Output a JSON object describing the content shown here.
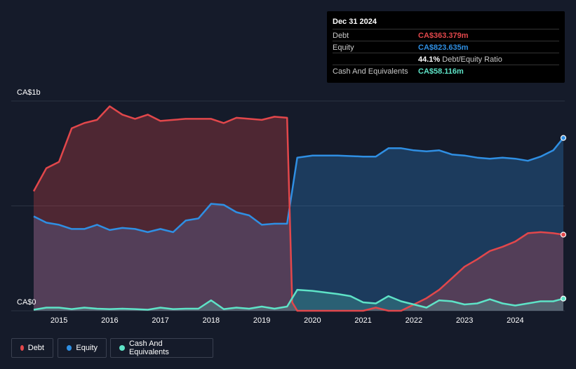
{
  "tooltip": {
    "date": "Dec 31 2024",
    "debt": {
      "label": "Debt",
      "value": "CA$363.379m"
    },
    "equity": {
      "label": "Equity",
      "value": "CA$823.635m"
    },
    "ratio": {
      "value": "44.1%",
      "label": "Debt/Equity Ratio"
    },
    "cash": {
      "label": "Cash And Equivalents",
      "value": "CA$58.116m"
    }
  },
  "legend": {
    "debt": "Debt",
    "equity": "Equity",
    "cash": "Cash And Equivalents"
  },
  "colors": {
    "debt": "#e2474b",
    "equity": "#2f8fe3",
    "cash": "#5ee3c7"
  },
  "chart_data": {
    "type": "area",
    "y_unit": "CA$ millions",
    "ylim": [
      0,
      1000
    ],
    "y_ticks": [
      "CA$0",
      "CA$1b"
    ],
    "x_ticks": [
      "2015",
      "2016",
      "2017",
      "2018",
      "2019",
      "2020",
      "2021",
      "2022",
      "2023",
      "2024"
    ],
    "series": [
      {
        "name": "Debt",
        "points": [
          [
            2014.5,
            570
          ],
          [
            2014.75,
            680
          ],
          [
            2015.0,
            710
          ],
          [
            2015.25,
            870
          ],
          [
            2015.5,
            895
          ],
          [
            2015.75,
            910
          ],
          [
            2016.0,
            975
          ],
          [
            2016.25,
            935
          ],
          [
            2016.5,
            915
          ],
          [
            2016.75,
            935
          ],
          [
            2017.0,
            905
          ],
          [
            2017.25,
            910
          ],
          [
            2017.5,
            915
          ],
          [
            2017.75,
            915
          ],
          [
            2018.0,
            915
          ],
          [
            2018.25,
            895
          ],
          [
            2018.5,
            920
          ],
          [
            2018.75,
            915
          ],
          [
            2019.0,
            910
          ],
          [
            2019.25,
            925
          ],
          [
            2019.5,
            920
          ],
          [
            2019.6,
            40
          ],
          [
            2019.7,
            0
          ],
          [
            2020.0,
            0
          ],
          [
            2020.5,
            0
          ],
          [
            2021.0,
            0
          ],
          [
            2021.25,
            15
          ],
          [
            2021.5,
            0
          ],
          [
            2021.75,
            0
          ],
          [
            2022.0,
            30
          ],
          [
            2022.25,
            60
          ],
          [
            2022.5,
            100
          ],
          [
            2022.75,
            155
          ],
          [
            2023.0,
            210
          ],
          [
            2023.25,
            245
          ],
          [
            2023.5,
            285
          ],
          [
            2023.75,
            305
          ],
          [
            2024.0,
            330
          ],
          [
            2024.25,
            370
          ],
          [
            2024.5,
            375
          ],
          [
            2024.75,
            370
          ],
          [
            2024.95,
            363
          ]
        ]
      },
      {
        "name": "Equity",
        "points": [
          [
            2014.5,
            450
          ],
          [
            2014.75,
            420
          ],
          [
            2015.0,
            410
          ],
          [
            2015.25,
            390
          ],
          [
            2015.5,
            390
          ],
          [
            2015.75,
            410
          ],
          [
            2016.0,
            385
          ],
          [
            2016.25,
            395
          ],
          [
            2016.5,
            390
          ],
          [
            2016.75,
            375
          ],
          [
            2017.0,
            390
          ],
          [
            2017.25,
            375
          ],
          [
            2017.5,
            430
          ],
          [
            2017.75,
            440
          ],
          [
            2018.0,
            510
          ],
          [
            2018.25,
            505
          ],
          [
            2018.5,
            470
          ],
          [
            2018.75,
            455
          ],
          [
            2019.0,
            410
          ],
          [
            2019.25,
            415
          ],
          [
            2019.5,
            415
          ],
          [
            2019.7,
            730
          ],
          [
            2020.0,
            740
          ],
          [
            2020.5,
            740
          ],
          [
            2021.0,
            735
          ],
          [
            2021.25,
            735
          ],
          [
            2021.5,
            775
          ],
          [
            2021.75,
            775
          ],
          [
            2022.0,
            765
          ],
          [
            2022.25,
            760
          ],
          [
            2022.5,
            765
          ],
          [
            2022.75,
            745
          ],
          [
            2023.0,
            740
          ],
          [
            2023.25,
            730
          ],
          [
            2023.5,
            725
          ],
          [
            2023.75,
            730
          ],
          [
            2024.0,
            725
          ],
          [
            2024.25,
            715
          ],
          [
            2024.5,
            735
          ],
          [
            2024.75,
            765
          ],
          [
            2024.95,
            824
          ]
        ]
      },
      {
        "name": "Cash And Equivalents",
        "points": [
          [
            2014.5,
            5
          ],
          [
            2014.75,
            15
          ],
          [
            2015.0,
            15
          ],
          [
            2015.25,
            8
          ],
          [
            2015.5,
            15
          ],
          [
            2015.75,
            10
          ],
          [
            2016.0,
            8
          ],
          [
            2016.25,
            10
          ],
          [
            2016.5,
            8
          ],
          [
            2016.75,
            5
          ],
          [
            2017.0,
            15
          ],
          [
            2017.25,
            8
          ],
          [
            2017.5,
            10
          ],
          [
            2017.75,
            10
          ],
          [
            2018.0,
            50
          ],
          [
            2018.25,
            8
          ],
          [
            2018.5,
            15
          ],
          [
            2018.75,
            10
          ],
          [
            2019.0,
            20
          ],
          [
            2019.25,
            10
          ],
          [
            2019.5,
            20
          ],
          [
            2019.7,
            100
          ],
          [
            2020.0,
            95
          ],
          [
            2020.5,
            80
          ],
          [
            2020.75,
            70
          ],
          [
            2021.0,
            40
          ],
          [
            2021.25,
            35
          ],
          [
            2021.5,
            70
          ],
          [
            2021.75,
            45
          ],
          [
            2022.0,
            30
          ],
          [
            2022.25,
            15
          ],
          [
            2022.5,
            50
          ],
          [
            2022.75,
            45
          ],
          [
            2023.0,
            30
          ],
          [
            2023.25,
            35
          ],
          [
            2023.5,
            55
          ],
          [
            2023.75,
            35
          ],
          [
            2024.0,
            25
          ],
          [
            2024.25,
            35
          ],
          [
            2024.5,
            45
          ],
          [
            2024.75,
            45
          ],
          [
            2024.95,
            58
          ]
        ]
      }
    ]
  }
}
